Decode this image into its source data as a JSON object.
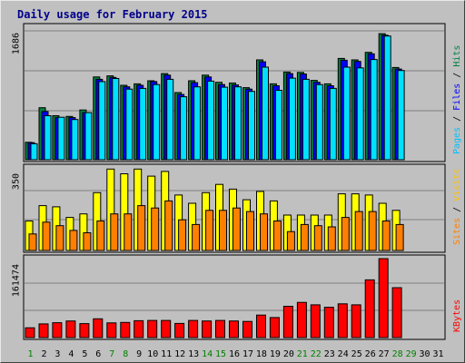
{
  "chart_data": {
    "type": "bar",
    "title": "Daily usage for February 2015",
    "x_labels": [
      "1",
      "2",
      "3",
      "4",
      "5",
      "6",
      "7",
      "8",
      "9",
      "10",
      "11",
      "12",
      "13",
      "14",
      "15",
      "16",
      "17",
      "18",
      "19",
      "20",
      "21",
      "22",
      "23",
      "24",
      "25",
      "26",
      "27",
      "28",
      "29",
      "30",
      "31"
    ],
    "weekend_days": [
      "1",
      "7",
      "8",
      "14",
      "15",
      "21",
      "22",
      "28",
      "29"
    ],
    "days_with_data": 28,
    "colors": {
      "hits": "#008040",
      "files": "#0000ff",
      "pages": "#00e0ff",
      "visits": "#ffff00",
      "sites": "#ff8000",
      "kbytes": "#ff0000",
      "weekend_label": "#008000",
      "weekday_label": "#000000",
      "title": "#00008b"
    },
    "panels": [
      {
        "id": "top",
        "ymax_label": "1686",
        "ymax": 1686,
        "side_labels": [
          {
            "text": "Pages",
            "color": "#00c0ff"
          },
          {
            "text": " / ",
            "color": "#000000"
          },
          {
            "text": "Files",
            "color": "#0000ff"
          },
          {
            "text": " / ",
            "color": "#000000"
          },
          {
            "text": "Hits",
            "color": "#008040"
          }
        ],
        "series": [
          {
            "name": "Hits",
            "color": "#008040",
            "values": [
              230,
              685,
              580,
              570,
              655,
              1090,
              1105,
              980,
              1000,
              1040,
              1135,
              885,
              1040,
              1115,
              1020,
              1010,
              950,
              1315,
              1000,
              1155,
              1150,
              1045,
              1000,
              1335,
              1315,
              1415,
              1661,
              1215
            ]
          },
          {
            "name": "Files",
            "color": "#0000ff",
            "values": [
              225,
              635,
              555,
              555,
              620,
              1060,
              1085,
              960,
              980,
              1030,
              1115,
              860,
              1015,
              1090,
              990,
              985,
              930,
              1290,
              975,
              1135,
              1130,
              1020,
              975,
              1310,
              1295,
              1395,
              1640,
              1195
            ]
          },
          {
            "name": "Pages",
            "color": "#00e0ff",
            "values": [
              210,
              580,
              560,
              530,
              620,
              1030,
              1070,
              930,
              940,
              990,
              1060,
              830,
              960,
              1035,
              955,
              960,
              900,
              1220,
              915,
              1075,
              1060,
              990,
              940,
              1220,
              1210,
              1320,
              1630,
              1175
            ]
          }
        ]
      },
      {
        "id": "mid",
        "ymax_label": "350",
        "ymax": 350,
        "side_labels": [
          {
            "text": "Sites",
            "color": "#ff8000"
          },
          {
            "text": " / ",
            "color": "#000000"
          },
          {
            "text": "Visits",
            "color": "#ffc000"
          }
        ],
        "series": [
          {
            "name": "Visits",
            "color": "#ffff00",
            "values": [
              125,
              190,
              185,
              140,
              155,
              245,
              345,
              325,
              345,
              315,
              335,
              235,
              200,
              245,
              280,
              260,
              215,
              250,
              210,
              150,
              150,
              150,
              150,
              240,
              240,
              235,
              200,
              170
            ]
          },
          {
            "name": "Sites",
            "color": "#ff8000",
            "values": [
              70,
              120,
              105,
              85,
              75,
              125,
              155,
              155,
              190,
              180,
              210,
              130,
              110,
              170,
              170,
              180,
              165,
              155,
              125,
              80,
              110,
              105,
              100,
              140,
              165,
              165,
              125,
              110
            ]
          }
        ]
      },
      {
        "id": "bot",
        "ymax_label": "161474",
        "ymax": 161474,
        "side_labels": [
          {
            "text": "KBytes",
            "color": "#ff0000"
          }
        ],
        "series": [
          {
            "name": "KBytes",
            "color": "#ff0000",
            "values": [
              20000,
              28000,
              30500,
              34000,
              28500,
              38500,
              30000,
              31000,
              34500,
              35000,
              35000,
              29000,
              35000,
              34000,
              35000,
              34000,
              33000,
              46000,
              41000,
              64000,
              72000,
              67000,
              62000,
              69000,
              67000,
              118000,
              161474,
              102000
            ]
          }
        ]
      }
    ]
  }
}
